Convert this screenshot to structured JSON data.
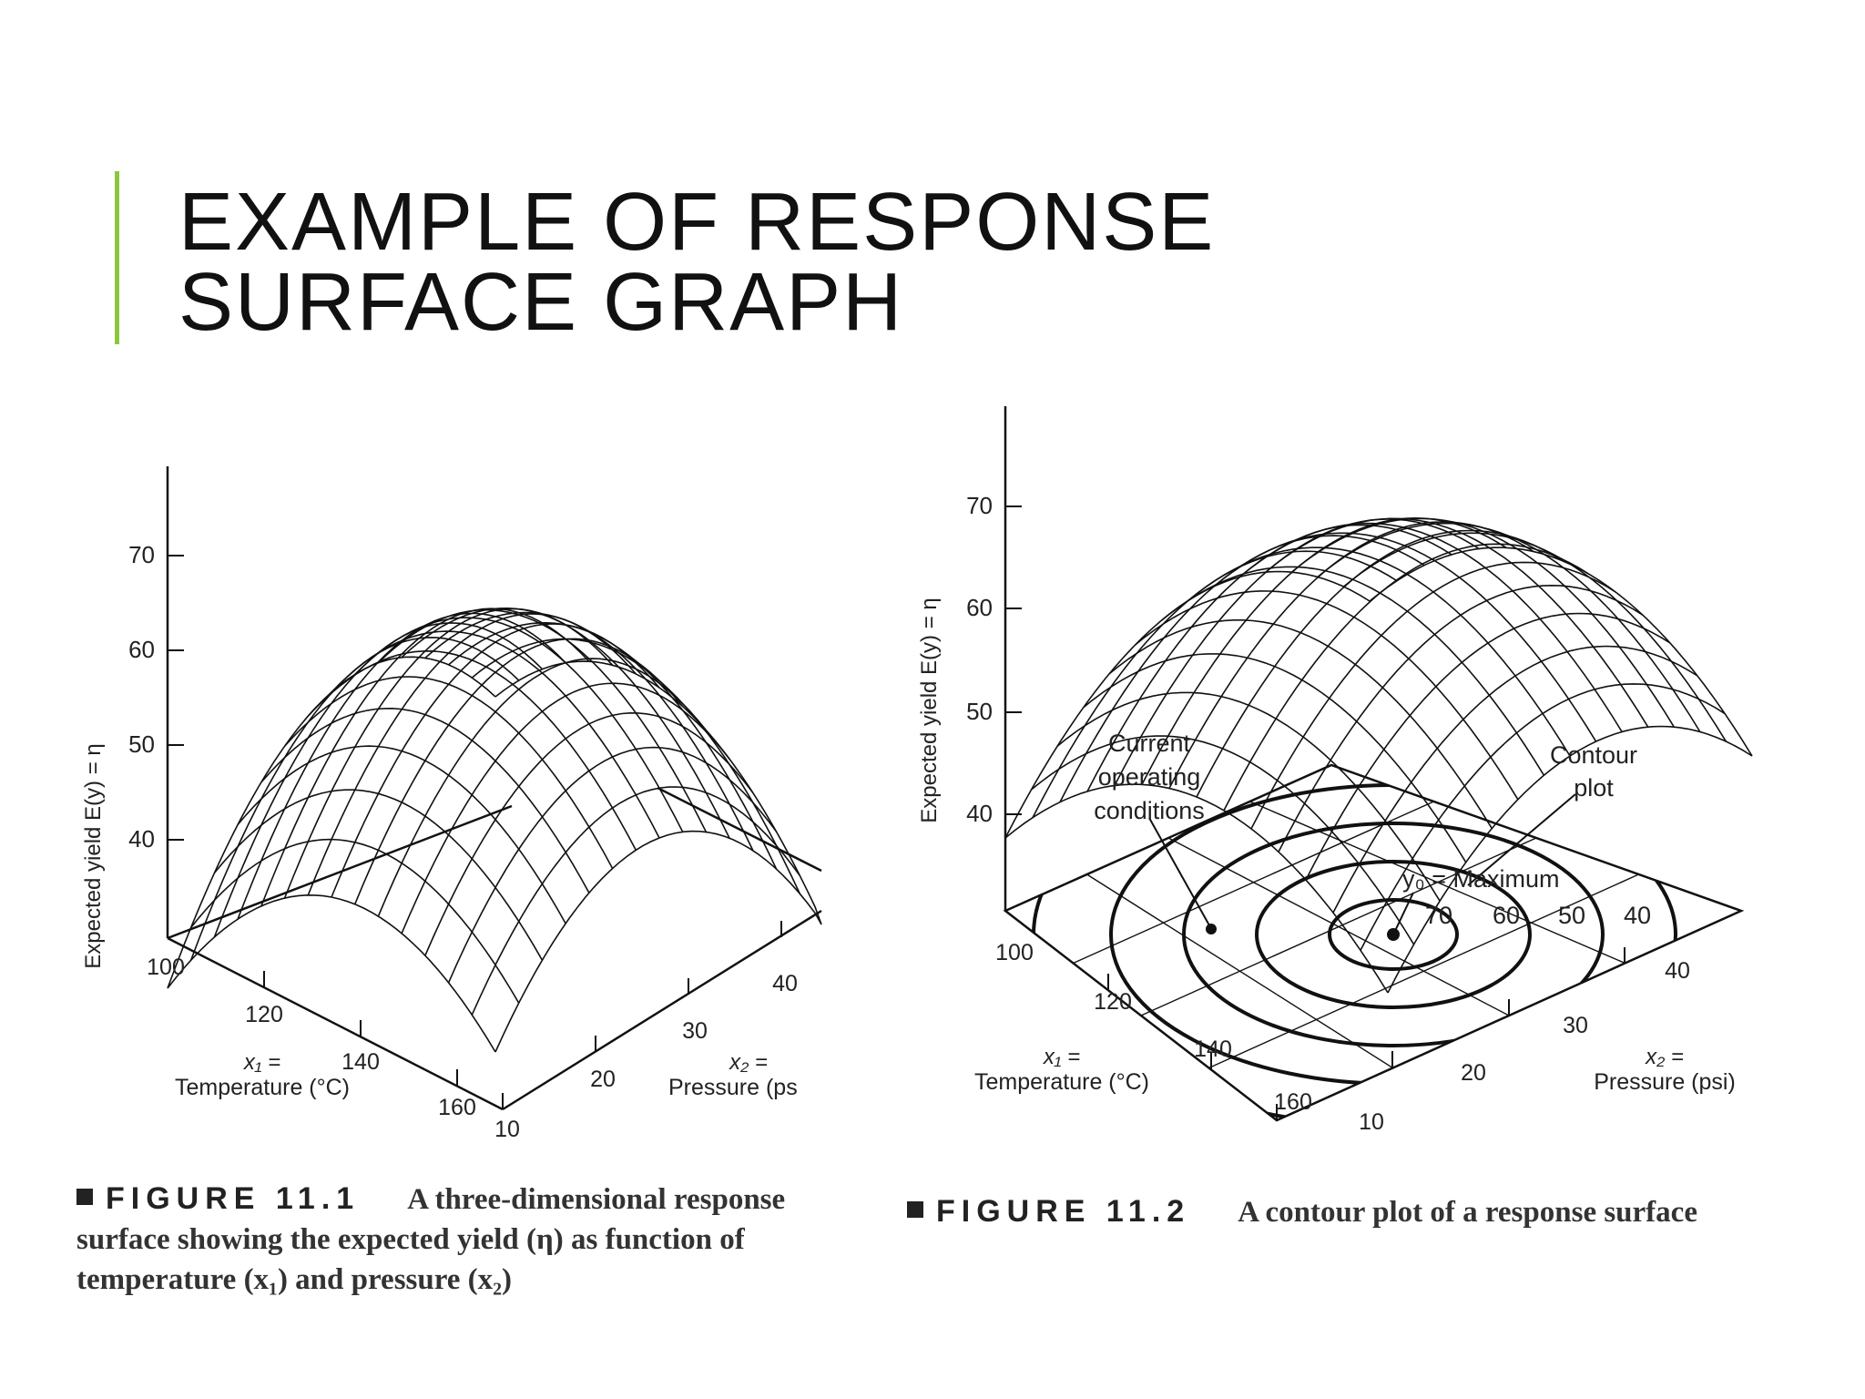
{
  "slide": {
    "title": "EXAMPLE OF RESPONSE SURFACE GRAPH",
    "accent_color": "#8cc63f"
  },
  "figure1": {
    "y_axis_label": "Expected yield  E(y) = η",
    "z_ticks": [
      "70",
      "60",
      "50",
      "40"
    ],
    "x1_ticks": [
      "100",
      "120",
      "140",
      "160"
    ],
    "x2_ticks": [
      "10",
      "20",
      "30",
      "40"
    ],
    "x1_label_line1": "x₁ =",
    "x1_label_line2": "Temperature (°C)",
    "x2_label_line1": "x₂ =",
    "x2_label_line2": "Pressure (ps",
    "caption": {
      "label": "FIGURE 11.1",
      "text": "A three-dimensional response surface showing the expected yield (η) as function of temperature (x₁) and pressure (x₂)"
    }
  },
  "figure2": {
    "y_axis_label": "Expected yield  E(y) = η",
    "z_ticks": [
      "70",
      "60",
      "50",
      "40"
    ],
    "x1_ticks": [
      "100",
      "120",
      "140",
      "160"
    ],
    "x2_ticks": [
      "10",
      "20",
      "30",
      "40"
    ],
    "x1_label_line1": "x₁ =",
    "x1_label_line2": "Temperature (°C)",
    "x2_label_line1": "x₂ =",
    "x2_label_line2": "Pressure (psi)",
    "annotation_current_1": "Current",
    "annotation_current_2": "operating",
    "annotation_current_3": "conditions",
    "annotation_contour_1": "Contour",
    "annotation_contour_2": "plot",
    "annotation_maximum": "y₀ = Maximum",
    "contour_labels": [
      "70",
      "60",
      "50",
      "40"
    ],
    "caption": {
      "label": "FIGURE 11.2",
      "text": "A contour plot of a response surface"
    }
  }
}
